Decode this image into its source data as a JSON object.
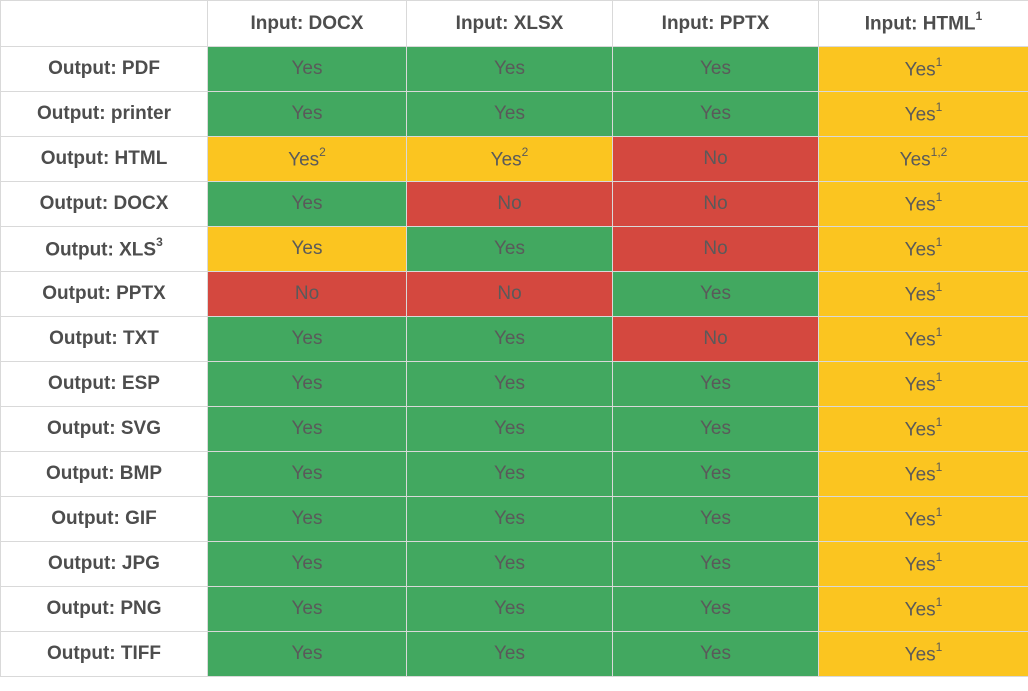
{
  "colors": {
    "yes": "#42a860",
    "partial": "#fbc520",
    "no": "#d4483f"
  },
  "columns": [
    {
      "label": "Input: DOCX",
      "note": ""
    },
    {
      "label": "Input: XLSX",
      "note": ""
    },
    {
      "label": "Input: PPTX",
      "note": ""
    },
    {
      "label": "Input: HTML",
      "note": "1"
    }
  ],
  "rows": [
    {
      "label": "Output: PDF",
      "note": "",
      "cells": [
        {
          "text": "Yes",
          "note": "",
          "status": "g"
        },
        {
          "text": "Yes",
          "note": "",
          "status": "g"
        },
        {
          "text": "Yes",
          "note": "",
          "status": "g"
        },
        {
          "text": "Yes",
          "note": "1",
          "status": "y"
        }
      ]
    },
    {
      "label": "Output: printer",
      "note": "",
      "cells": [
        {
          "text": "Yes",
          "note": "",
          "status": "g"
        },
        {
          "text": "Yes",
          "note": "",
          "status": "g"
        },
        {
          "text": "Yes",
          "note": "",
          "status": "g"
        },
        {
          "text": "Yes",
          "note": "1",
          "status": "y"
        }
      ]
    },
    {
      "label": "Output: HTML",
      "note": "",
      "cells": [
        {
          "text": "Yes",
          "note": "2",
          "status": "y"
        },
        {
          "text": "Yes",
          "note": "2",
          "status": "y"
        },
        {
          "text": "No",
          "note": "",
          "status": "r"
        },
        {
          "text": "Yes",
          "note": "1,2",
          "status": "y"
        }
      ]
    },
    {
      "label": "Output: DOCX",
      "note": "",
      "cells": [
        {
          "text": "Yes",
          "note": "",
          "status": "g"
        },
        {
          "text": "No",
          "note": "",
          "status": "r"
        },
        {
          "text": "No",
          "note": "",
          "status": "r"
        },
        {
          "text": "Yes",
          "note": "1",
          "status": "y"
        }
      ]
    },
    {
      "label": "Output: XLS",
      "note": "3",
      "cells": [
        {
          "text": "Yes",
          "note": "",
          "status": "y"
        },
        {
          "text": "Yes",
          "note": "",
          "status": "g"
        },
        {
          "text": "No",
          "note": "",
          "status": "r"
        },
        {
          "text": "Yes",
          "note": "1",
          "status": "y"
        }
      ]
    },
    {
      "label": "Output: PPTX",
      "note": "",
      "cells": [
        {
          "text": "No",
          "note": "",
          "status": "r"
        },
        {
          "text": "No",
          "note": "",
          "status": "r"
        },
        {
          "text": "Yes",
          "note": "",
          "status": "g"
        },
        {
          "text": "Yes",
          "note": "1",
          "status": "y"
        }
      ]
    },
    {
      "label": "Output: TXT",
      "note": "",
      "cells": [
        {
          "text": "Yes",
          "note": "",
          "status": "g"
        },
        {
          "text": "Yes",
          "note": "",
          "status": "g"
        },
        {
          "text": "No",
          "note": "",
          "status": "r"
        },
        {
          "text": "Yes",
          "note": "1",
          "status": "y"
        }
      ]
    },
    {
      "label": "Output: ESP",
      "note": "",
      "cells": [
        {
          "text": "Yes",
          "note": "",
          "status": "g"
        },
        {
          "text": "Yes",
          "note": "",
          "status": "g"
        },
        {
          "text": "Yes",
          "note": "",
          "status": "g"
        },
        {
          "text": "Yes",
          "note": "1",
          "status": "y"
        }
      ]
    },
    {
      "label": "Output: SVG",
      "note": "",
      "cells": [
        {
          "text": "Yes",
          "note": "",
          "status": "g"
        },
        {
          "text": "Yes",
          "note": "",
          "status": "g"
        },
        {
          "text": "Yes",
          "note": "",
          "status": "g"
        },
        {
          "text": "Yes",
          "note": "1",
          "status": "y"
        }
      ]
    },
    {
      "label": "Output: BMP",
      "note": "",
      "cells": [
        {
          "text": "Yes",
          "note": "",
          "status": "g"
        },
        {
          "text": "Yes",
          "note": "",
          "status": "g"
        },
        {
          "text": "Yes",
          "note": "",
          "status": "g"
        },
        {
          "text": "Yes",
          "note": "1",
          "status": "y"
        }
      ]
    },
    {
      "label": "Output: GIF",
      "note": "",
      "cells": [
        {
          "text": "Yes",
          "note": "",
          "status": "g"
        },
        {
          "text": "Yes",
          "note": "",
          "status": "g"
        },
        {
          "text": "Yes",
          "note": "",
          "status": "g"
        },
        {
          "text": "Yes",
          "note": "1",
          "status": "y"
        }
      ]
    },
    {
      "label": "Output: JPG",
      "note": "",
      "cells": [
        {
          "text": "Yes",
          "note": "",
          "status": "g"
        },
        {
          "text": "Yes",
          "note": "",
          "status": "g"
        },
        {
          "text": "Yes",
          "note": "",
          "status": "g"
        },
        {
          "text": "Yes",
          "note": "1",
          "status": "y"
        }
      ]
    },
    {
      "label": "Output: PNG",
      "note": "",
      "cells": [
        {
          "text": "Yes",
          "note": "",
          "status": "g"
        },
        {
          "text": "Yes",
          "note": "",
          "status": "g"
        },
        {
          "text": "Yes",
          "note": "",
          "status": "g"
        },
        {
          "text": "Yes",
          "note": "1",
          "status": "y"
        }
      ]
    },
    {
      "label": "Output: TIFF",
      "note": "",
      "cells": [
        {
          "text": "Yes",
          "note": "",
          "status": "g"
        },
        {
          "text": "Yes",
          "note": "",
          "status": "g"
        },
        {
          "text": "Yes",
          "note": "",
          "status": "g"
        },
        {
          "text": "Yes",
          "note": "1",
          "status": "y"
        }
      ]
    }
  ]
}
